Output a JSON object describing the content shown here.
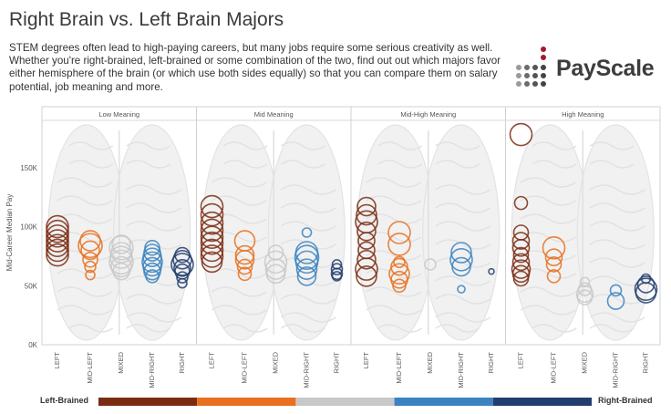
{
  "header": {
    "title": "Right Brain vs. Left Brain Majors",
    "description": "STEM degrees often lead to high-paying careers, but many jobs require some serious creativity as well. Whether you're right-brained, left-brained or some combination of the two, find out out which majors favor either hemisphere of the brain (or which use both sides equally) so that you can compare them on salary potential, job meaning and more.",
    "logo_text": "PayScale"
  },
  "legend": {
    "left_label": "Left-Brained",
    "right_label": "Right-Brained",
    "colors": [
      "#7a2c12",
      "#e8701e",
      "#c8c8c8",
      "#3a83c0",
      "#223e6e"
    ]
  },
  "chart_data": {
    "type": "scatter",
    "ylabel": "Mid-Career Median Pay",
    "yticks": [
      "0K",
      "50K",
      "100K",
      "150K"
    ],
    "ylim": [
      0,
      190000
    ],
    "categories": [
      "LEFT",
      "MID-LEFT",
      "MIXED",
      "MID-RIGHT",
      "RIGHT"
    ],
    "category_colors": {
      "LEFT": "#7a2c12",
      "MID-LEFT": "#e8701e",
      "MIXED": "#c8c8c8",
      "MID-RIGHT": "#3a83c0",
      "RIGHT": "#223e6e"
    },
    "panels": [
      {
        "name": "Low Meaning",
        "points": {
          "LEFT": [
            [
              100000,
              12
            ],
            [
              96000,
              12
            ],
            [
              92000,
              12
            ],
            [
              88000,
              12
            ],
            [
              84000,
              12
            ],
            [
              80000,
              12
            ],
            [
              76000,
              12
            ]
          ],
          "MID-LEFT": [
            [
              88000,
              11
            ],
            [
              84000,
              13
            ],
            [
              80000,
              10
            ],
            [
              72000,
              8
            ],
            [
              66000,
              6
            ],
            [
              59000,
              5
            ]
          ],
          "MIXED": [
            [
              85000,
              10
            ],
            [
              82000,
              13
            ],
            [
              78000,
              11
            ],
            [
              74000,
              12
            ],
            [
              70000,
              13
            ],
            [
              66000,
              11
            ],
            [
              62000,
              9
            ]
          ],
          "MID-RIGHT": [
            [
              82000,
              8
            ],
            [
              78000,
              9
            ],
            [
              74000,
              10
            ],
            [
              70000,
              11
            ],
            [
              66000,
              10
            ],
            [
              62000,
              9
            ],
            [
              58000,
              7
            ]
          ],
          "RIGHT": [
            [
              76000,
              8
            ],
            [
              72000,
              10
            ],
            [
              68000,
              12
            ],
            [
              65000,
              9
            ],
            [
              62000,
              8
            ],
            [
              57000,
              6
            ],
            [
              52000,
              5
            ]
          ]
        }
      },
      {
        "name": "Mid Meaning",
        "points": {
          "LEFT": [
            [
              117000,
              12
            ],
            [
              110000,
              12
            ],
            [
              103000,
              12
            ],
            [
              97000,
              12
            ],
            [
              91000,
              12
            ],
            [
              86000,
              12
            ],
            [
              80000,
              12
            ],
            [
              75000,
              12
            ],
            [
              70000,
              11
            ]
          ],
          "MID-LEFT": [
            [
              88000,
              11
            ],
            [
              76000,
              10
            ],
            [
              72000,
              10
            ],
            [
              66000,
              8
            ],
            [
              60000,
              7
            ]
          ],
          "MIXED": [
            [
              78000,
              8
            ],
            [
              70000,
              12
            ],
            [
              64000,
              11
            ],
            [
              60000,
              10
            ]
          ],
          "MID-RIGHT": [
            [
              95000,
              5
            ],
            [
              78000,
              12
            ],
            [
              74000,
              13
            ],
            [
              70000,
              12
            ],
            [
              64000,
              11
            ],
            [
              58000,
              10
            ]
          ],
          "RIGHT": [
            [
              68000,
              5
            ],
            [
              64000,
              6
            ],
            [
              60000,
              6
            ],
            [
              58000,
              5
            ]
          ]
        }
      },
      {
        "name": "Mid-High Meaning",
        "points": {
          "LEFT": [
            [
              117000,
              10
            ],
            [
              110000,
              11
            ],
            [
              104000,
              12
            ],
            [
              96000,
              10
            ],
            [
              88000,
              9
            ],
            [
              80000,
              9
            ],
            [
              72000,
              10
            ],
            [
              64000,
              12
            ],
            [
              58000,
              11
            ]
          ],
          "MID-LEFT": [
            [
              95000,
              12
            ],
            [
              85000,
              12
            ],
            [
              70000,
              6
            ],
            [
              66000,
              9
            ],
            [
              60000,
              11
            ],
            [
              55000,
              9
            ],
            [
              50000,
              7
            ]
          ],
          "MIXED": [
            [
              68000,
              6
            ]
          ],
          "MID-RIGHT": [
            [
              78000,
              11
            ],
            [
              72000,
              12
            ],
            [
              66000,
              10
            ],
            [
              47000,
              4
            ]
          ],
          "RIGHT": [
            [
              62000,
              3
            ]
          ]
        }
      },
      {
        "name": "High Meaning",
        "points": {
          "LEFT": [
            [
              178000,
              12
            ],
            [
              120000,
              7
            ],
            [
              95000,
              8
            ],
            [
              88000,
              9
            ],
            [
              82000,
              9
            ],
            [
              76000,
              8
            ],
            [
              70000,
              9
            ],
            [
              64000,
              10
            ],
            [
              60000,
              9
            ],
            [
              56000,
              8
            ]
          ],
          "MID-LEFT": [
            [
              82000,
              12
            ],
            [
              74000,
              9
            ],
            [
              68000,
              8
            ],
            [
              58000,
              7
            ]
          ],
          "MIXED": [
            [
              53000,
              5
            ],
            [
              47000,
              7
            ],
            [
              43000,
              9
            ],
            [
              40000,
              8
            ]
          ],
          "MID-RIGHT": [
            [
              46000,
              6
            ],
            [
              37000,
              9
            ]
          ],
          "RIGHT": [
            [
              56000,
              5
            ],
            [
              51000,
              9
            ],
            [
              47000,
              12
            ],
            [
              44000,
              11
            ]
          ]
        }
      }
    ]
  }
}
